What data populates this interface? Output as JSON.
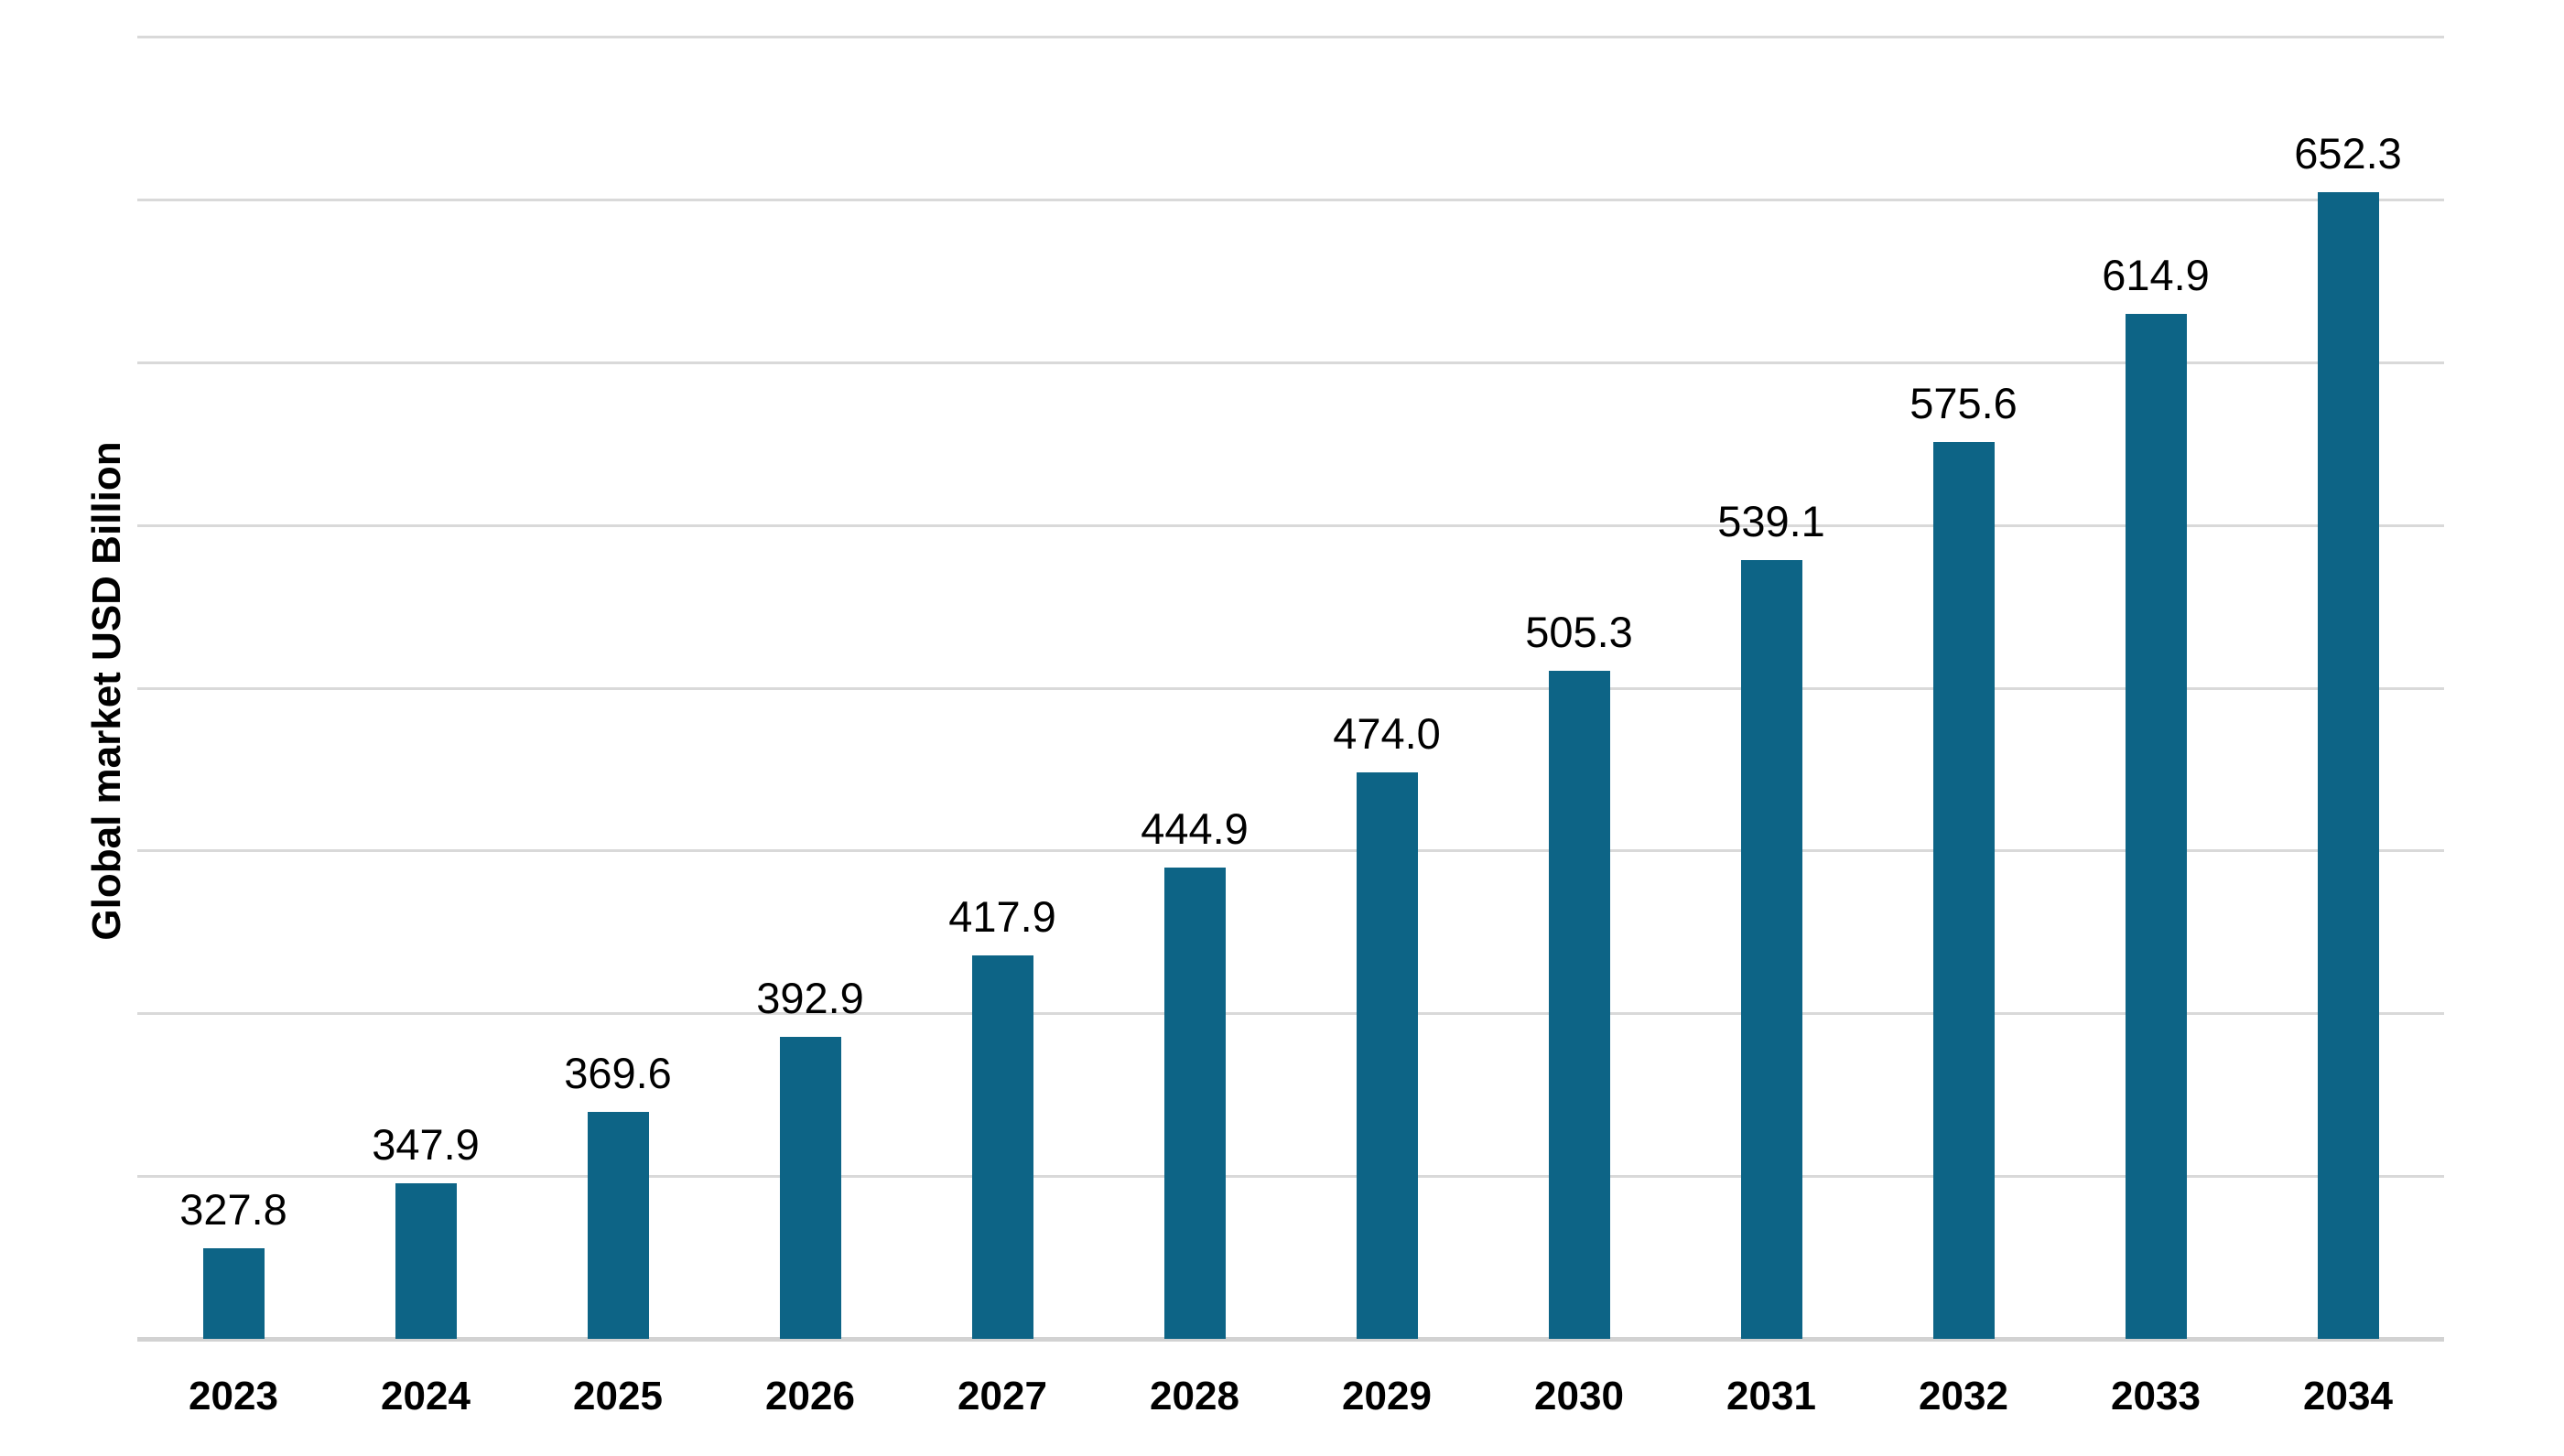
{
  "chart_data": {
    "type": "bar",
    "title": "",
    "ylabel": "Global market USD Billion",
    "xlabel": "",
    "categories": [
      "2023",
      "2024",
      "2025",
      "2026",
      "2027",
      "2028",
      "2029",
      "2030",
      "2031",
      "2032",
      "2033",
      "2034"
    ],
    "values": [
      327.8,
      347.9,
      369.6,
      392.9,
      417.9,
      444.9,
      474.0,
      505.3,
      539.1,
      575.6,
      614.9,
      652.3
    ],
    "value_label_decimals": 1,
    "ylim": [
      300,
      700
    ],
    "grid_step": 50,
    "grid": true,
    "legend_position": "none",
    "bar_color": "#0D6486",
    "gridline_color": "#D9D9D9",
    "axis_line_color": "#D2D2D2",
    "text_color": "#000000",
    "background_color": "#FFFFFF"
  }
}
